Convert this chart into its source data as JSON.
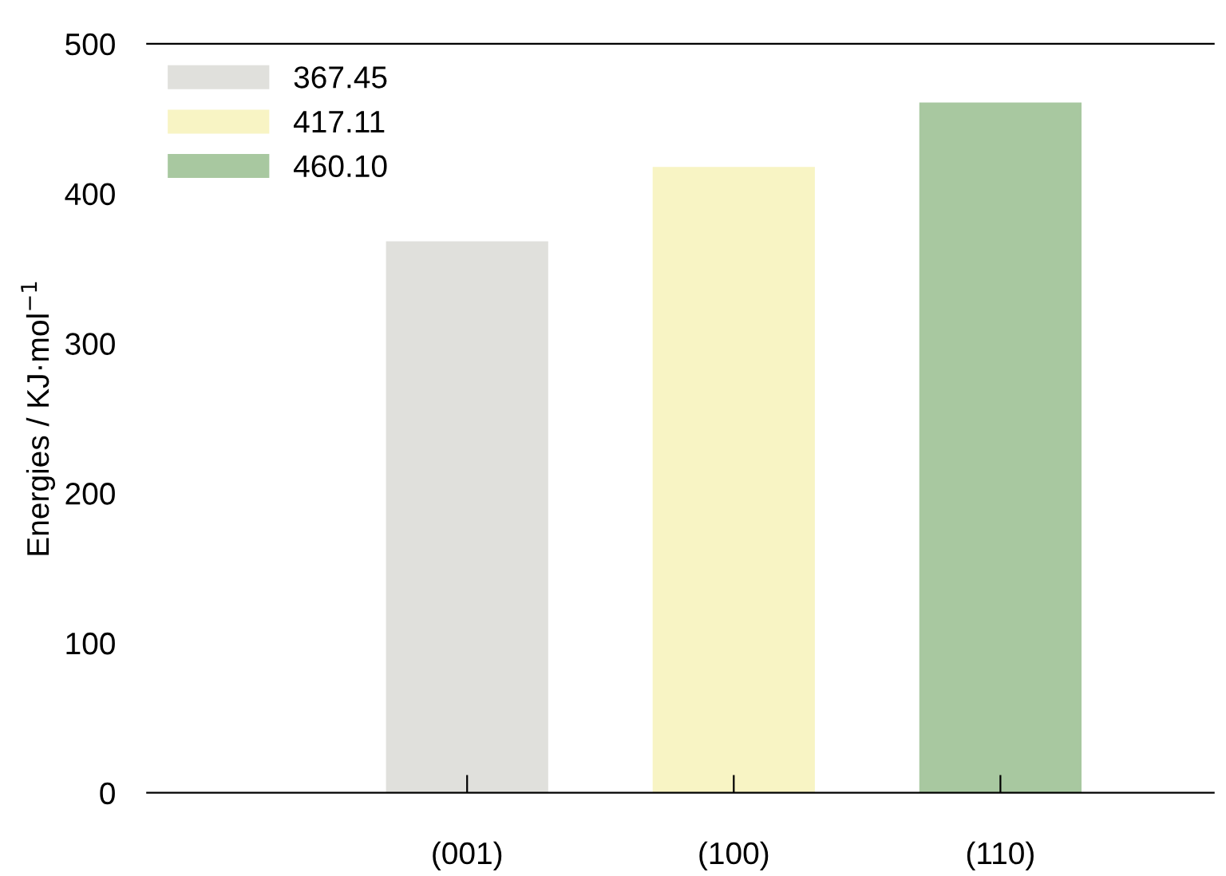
{
  "chart_data": {
    "type": "bar",
    "ylabel": "Energies / KJ·mol$^{−1}$",
    "categories": [
      "(001)",
      "(100)",
      "(110)"
    ],
    "series": [
      {
        "name": "367.45",
        "color": "#e0e0dc",
        "values": [
          367.45,
          null,
          null
        ]
      },
      {
        "name": "417.11",
        "color": "#f8f4c4",
        "values": [
          null,
          417.11,
          null
        ]
      },
      {
        "name": "460.10",
        "color": "#a8c8a0",
        "values": [
          null,
          null,
          460.1
        ]
      }
    ],
    "ylim": [
      0,
      500
    ],
    "yticks": [
      0,
      100,
      200,
      300,
      400,
      500
    ],
    "grid": false,
    "legend": "top left"
  }
}
